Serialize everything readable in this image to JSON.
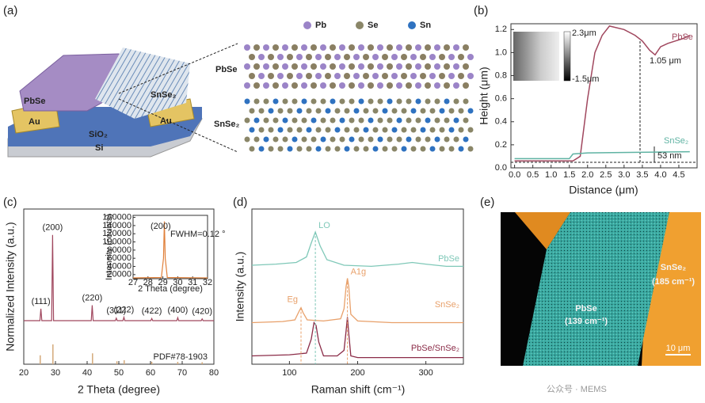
{
  "figure": {
    "panel_a": {
      "label": "(a)",
      "atoms": [
        "Pb",
        "Se",
        "Sn"
      ],
      "layers": [
        "PbSe",
        "SnSe₂"
      ],
      "device": [
        "PbSe",
        "SnSe₂",
        "Au",
        "Au",
        "SiO₂",
        "Si"
      ]
    },
    "panel_e": {
      "label": "(e)",
      "regions": [
        "SnSe₂",
        "(185 cm⁻¹)",
        "PbSe",
        "(139 cm⁻¹)"
      ],
      "scale_bar": "10 μm"
    },
    "watermark": "公众号 · MEMS"
  },
  "chart_data": [
    {
      "type": "line",
      "panel": "(b)",
      "x_label": "Distance (μm)",
      "y_label": "Height (μm)",
      "xlim": [
        -0.1,
        5.0
      ],
      "ylim": [
        0,
        1.25
      ],
      "xticks": [
        {
          "value": 0,
          "label": "0.0"
        },
        0.5,
        {
          "value": 1,
          "label": "1.0"
        },
        1.5,
        {
          "value": 2,
          "label": "2.0"
        },
        2.5,
        {
          "value": 3,
          "label": "3.0"
        },
        3.5,
        {
          "value": 4,
          "label": "4.0"
        },
        4.5
      ],
      "yticks": [
        {
          "value": 0,
          "label": "0.0"
        },
        0.2,
        0.4,
        0.6,
        0.8,
        {
          "value": 1,
          "label": "1.0"
        },
        1.2
      ],
      "series": [
        {
          "name": "PbSe",
          "color": "#a0475e",
          "x": [
            0,
            1.6,
            1.8,
            2.0,
            2.2,
            2.4,
            2.6,
            3.0,
            3.3,
            3.5,
            3.7,
            3.85,
            4.0,
            4.2,
            4.4,
            4.6,
            4.8
          ],
          "values": [
            0.06,
            0.06,
            0.1,
            0.6,
            1.0,
            1.15,
            1.23,
            1.2,
            1.15,
            1.1,
            1.02,
            0.98,
            1.05,
            1.08,
            1.1,
            1.12,
            1.15
          ]
        },
        {
          "name": "SnSe₂",
          "color": "#5fb3a3",
          "x": [
            0,
            1.5,
            1.6,
            2.0,
            4.8
          ],
          "values": [
            0.08,
            0.08,
            0.12,
            0.13,
            0.14
          ]
        }
      ],
      "annotations": [
        "1.05 μm",
        "53 nm"
      ],
      "inset_scale": [
        "2.3μm",
        "-1.5μm"
      ]
    },
    {
      "type": "line",
      "panel": "(c)",
      "x_label": "2 Theta (degree)",
      "y_label": "Normalized Intensity (a.u.)",
      "xlim": [
        20,
        80
      ],
      "xticks": [
        20,
        30,
        40,
        50,
        60,
        70,
        80
      ],
      "ylim": [
        0,
        1.1
      ],
      "series": [
        {
          "color": "#a0475e",
          "x": [
            20,
            25.1,
            25.4,
            25.7,
            28.8,
            29.1,
            29.4,
            41.3,
            41.6,
            41.9,
            48.9,
            49.2,
            49.5,
            51.3,
            51.6,
            51.9,
            60.1,
            60.4,
            60.7,
            68.3,
            68.6,
            68.9,
            76.0,
            76.3,
            76.6,
            80
          ],
          "values": [
            0,
            0,
            0.14,
            0,
            0,
            1,
            0,
            0,
            0.18,
            0,
            0,
            0.03,
            0,
            0,
            0.04,
            0,
            0,
            0.025,
            0,
            0,
            0.035,
            0,
            0,
            0.02,
            0,
            0
          ]
        }
      ],
      "peak_labels": [
        "(111)",
        "(200)",
        "(220)",
        "(311)",
        "(222)",
        "(422)",
        "(400)",
        "(420)"
      ],
      "reference": {
        "label": "PDF#78-1903",
        "color": "#d4a979",
        "x": [
          25.2,
          29.2,
          41.7,
          49.4,
          51.7,
          60.4,
          68.6,
          76.3
        ],
        "values": [
          0.45,
          1,
          0.55,
          0.15,
          0.2,
          0.12,
          0.12,
          0.1
        ]
      },
      "inset": {
        "x_label": "2 Theta (degree)",
        "y_label": "Intensity (counts)",
        "peak_label": "(200)",
        "fwhm": "FWHM=0.12 °",
        "xlim": [
          27,
          32
        ],
        "xticks": [
          27,
          28,
          29,
          30,
          31,
          32
        ],
        "ylim": [
          10000,
          165000
        ],
        "yticks": [
          20000,
          40000,
          60000,
          80000,
          100000,
          120000,
          140000,
          160000
        ],
        "x": [
          27,
          28.9,
          29.04,
          29.1,
          29.16,
          29.3,
          32
        ],
        "values": [
          12000,
          13000,
          60000,
          150000,
          60000,
          13000,
          12000
        ]
      }
    },
    {
      "type": "line",
      "panel": "(d)",
      "x_label": "Raman shift (cm⁻¹)",
      "y_label": "Intensity (a.u.)",
      "xlim": [
        45,
        355
      ],
      "xticks": [
        100,
        200,
        300
      ],
      "ylim": [
        0,
        1
      ],
      "series": [
        {
          "name": "PbSe",
          "color": "#7fc8b8",
          "x": [
            45,
            80,
            110,
            125,
            132,
            138,
            145,
            155,
            180,
            220,
            260,
            280,
            300,
            330,
            355
          ],
          "values": [
            0.2,
            0.22,
            0.25,
            0.35,
            0.6,
            0.8,
            0.55,
            0.3,
            0.2,
            0.18,
            0.22,
            0.25,
            0.22,
            0.18,
            0.18
          ]
        },
        {
          "name": "SnSe₂",
          "color": "#e8a06a",
          "x": [
            45,
            90,
            108,
            114,
            117,
            120,
            126,
            150,
            175,
            180,
            183,
            185,
            187,
            190,
            200,
            250,
            300,
            355
          ],
          "values": [
            0.15,
            0.17,
            0.2,
            0.35,
            0.42,
            0.33,
            0.2,
            0.18,
            0.22,
            0.4,
            0.8,
            0.95,
            0.8,
            0.3,
            0.18,
            0.15,
            0.15,
            0.15
          ]
        },
        {
          "name": "PbSe/SnSe₂",
          "color": "#8b2c48",
          "x": [
            45,
            100,
            125,
            132,
            136,
            139,
            143,
            150,
            170,
            180,
            183,
            185,
            187,
            190,
            200,
            250,
            355
          ],
          "values": [
            0.15,
            0.17,
            0.2,
            0.45,
            0.75,
            0.7,
            0.4,
            0.15,
            0.15,
            0.25,
            0.6,
            0.85,
            0.55,
            0.15,
            0.12,
            0.12,
            0.12
          ]
        }
      ],
      "peak_labels": [
        "LO",
        "Eg",
        "A1g"
      ]
    }
  ]
}
